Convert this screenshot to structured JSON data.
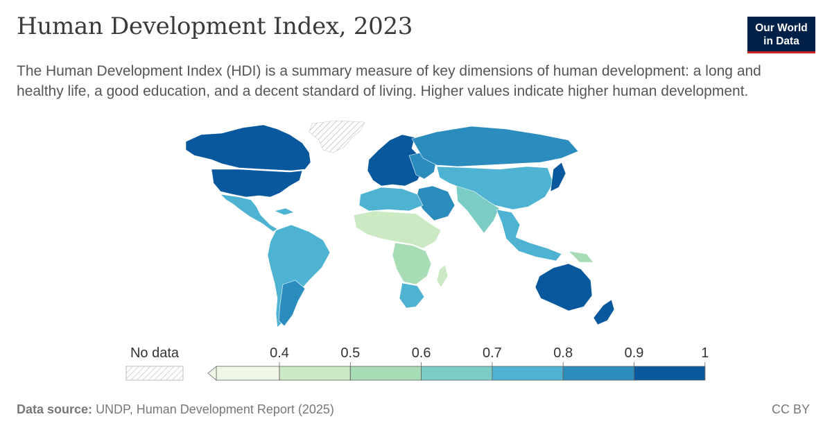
{
  "header": {
    "title": "Human Development Index, 2023",
    "subtitle": "The Human Development Index (HDI) is a summary measure of key dimensions of human development: a long and healthy life, a good education, and a decent standard of living. Higher values indicate higher human development."
  },
  "logo": {
    "line1": "Our World",
    "line2": "in Data"
  },
  "legend": {
    "no_data_label": "No data",
    "ticks": [
      "0.4",
      "0.5",
      "0.6",
      "0.7",
      "0.8",
      "0.9",
      "1"
    ],
    "bins": [
      {
        "from": 0.0,
        "to": 0.4,
        "color": "#eef7e6"
      },
      {
        "from": 0.4,
        "to": 0.5,
        "color": "#cbe9c3"
      },
      {
        "from": 0.5,
        "to": 0.6,
        "color": "#a8dcb5"
      },
      {
        "from": 0.6,
        "to": 0.7,
        "color": "#7bccc4"
      },
      {
        "from": 0.7,
        "to": 0.8,
        "color": "#4eb3d3"
      },
      {
        "from": 0.8,
        "to": 0.9,
        "color": "#2b8cbe"
      },
      {
        "from": 0.9,
        "to": 1.0,
        "color": "#08589e"
      }
    ]
  },
  "footer": {
    "source_label": "Data source:",
    "source_text": "UNDP, Human Development Report (2025)",
    "license": "CC BY"
  }
}
